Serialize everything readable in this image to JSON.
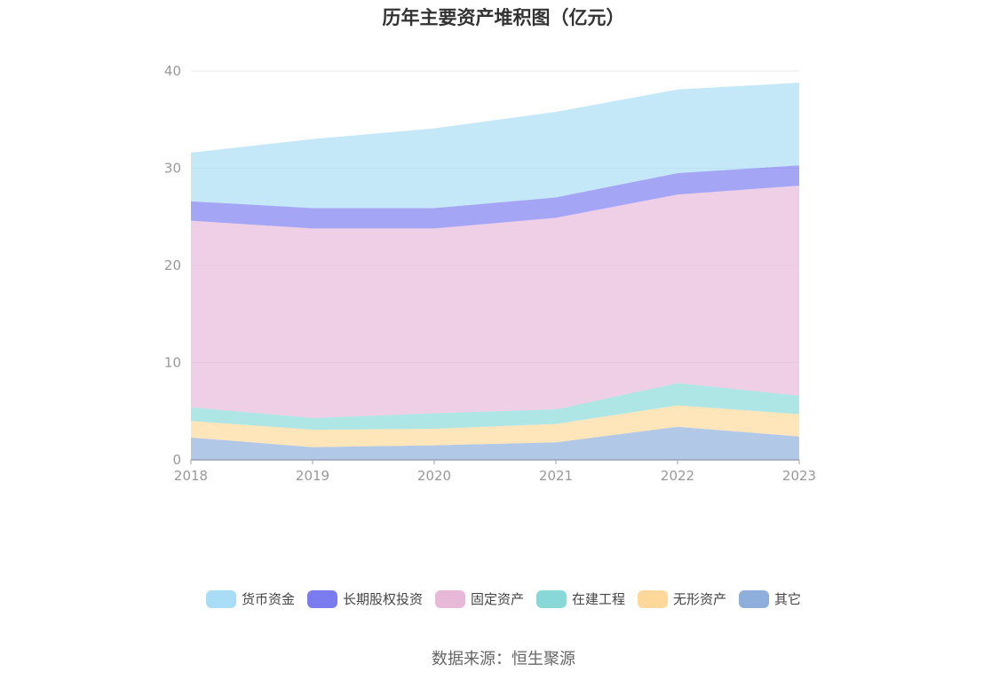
{
  "chart_data": {
    "type": "area",
    "stacked": true,
    "title": "历年主要资产堆积图（亿元）",
    "categories": [
      "2018",
      "2019",
      "2020",
      "2021",
      "2022",
      "2023"
    ],
    "ylim": [
      0,
      40
    ],
    "yticks": [
      "0",
      "10",
      "20",
      "30",
      "40"
    ],
    "grid": true,
    "legend_position": "bottom",
    "series": [
      {
        "name": "其它",
        "color": "#8eaedb",
        "values": [
          2.3,
          1.3,
          1.5,
          1.8,
          3.4,
          2.4
        ]
      },
      {
        "name": "无形资产",
        "color": "#fdd89a",
        "values": [
          1.7,
          1.8,
          1.7,
          1.9,
          2.2,
          2.3
        ]
      },
      {
        "name": "在建工程",
        "color": "#88d8d8",
        "values": [
          1.4,
          1.2,
          1.6,
          1.5,
          2.3,
          1.9
        ]
      },
      {
        "name": "固定资产",
        "color": "#e8b8d8",
        "values": [
          19.2,
          19.5,
          19.0,
          19.7,
          19.4,
          21.6
        ]
      },
      {
        "name": "长期股权投资",
        "color": "#7b7bf0",
        "values": [
          2.0,
          2.1,
          2.1,
          2.1,
          2.2,
          2.1
        ]
      },
      {
        "name": "货币资金",
        "color": "#a8ddf5",
        "values": [
          5.0,
          7.1,
          8.2,
          8.8,
          8.6,
          8.5
        ]
      }
    ]
  },
  "legend_order": [
    "货币资金",
    "长期股权投资",
    "固定资产",
    "在建工程",
    "无形资产",
    "其它"
  ],
  "footer": {
    "source": "数据来源：恒生聚源"
  }
}
